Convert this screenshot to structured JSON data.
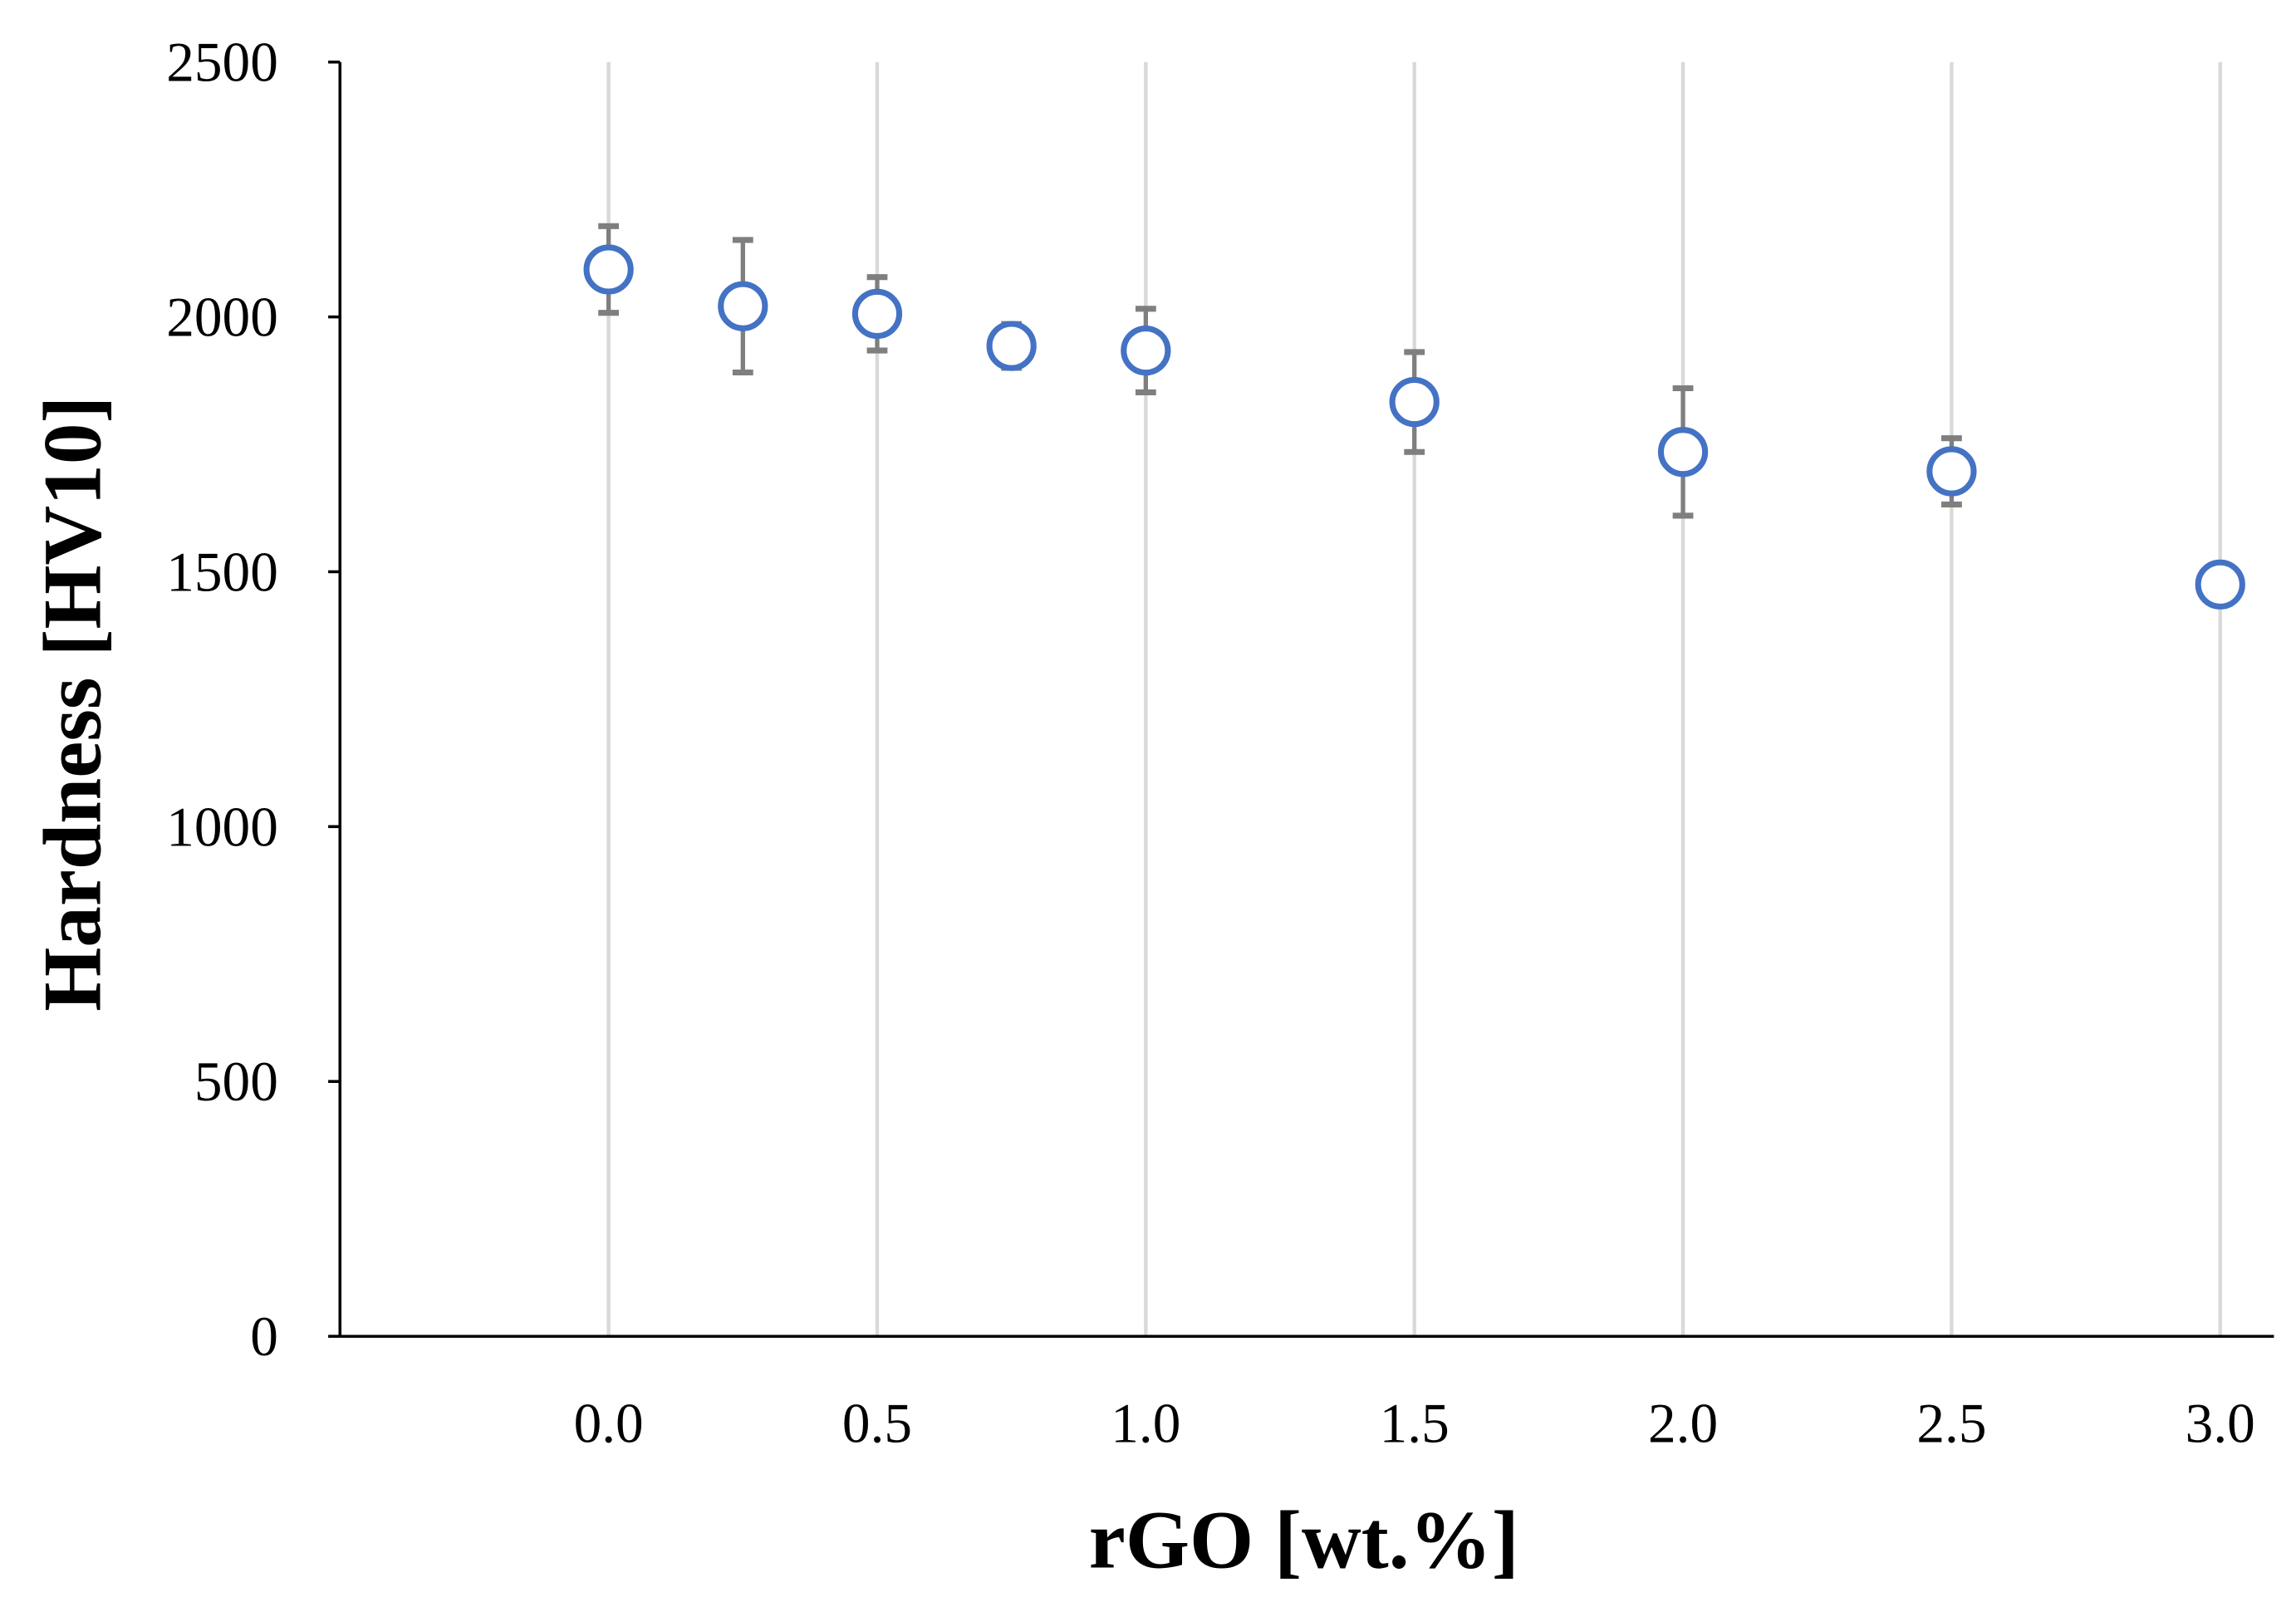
{
  "chart_data": {
    "type": "scatter",
    "title": "",
    "xlabel": "rGO [wt.%]",
    "ylabel": "Hardness [HV10]",
    "xlim": [
      -0.5,
      3.1
    ],
    "ylim": [
      0,
      2500
    ],
    "xticks": [
      0.0,
      0.5,
      1.0,
      1.5,
      2.0,
      2.5,
      3.0
    ],
    "xtick_labels": [
      "0.0",
      "0.5",
      "1.0",
      "1.5",
      "2.0",
      "2.5",
      "3.0"
    ],
    "yticks": [
      0,
      500,
      1000,
      1500,
      2000,
      2500
    ],
    "ytick_labels": [
      "0",
      "500",
      "1000",
      "1500",
      "2000",
      "2500"
    ],
    "grid": "vertical",
    "legend": "none",
    "series": [
      {
        "name": "Hardness",
        "marker": "open-circle",
        "color": "#4472C4",
        "error_color": "#7F7F7F",
        "x": [
          0.0,
          0.25,
          0.5,
          0.75,
          1.0,
          1.5,
          2.0,
          2.5,
          3.0
        ],
        "y": [
          2093,
          2021,
          2006,
          1943,
          1934,
          1833,
          1735,
          1697,
          1475
        ],
        "error": [
          85,
          130,
          72,
          43,
          82,
          98,
          125,
          65,
          0
        ]
      }
    ]
  }
}
